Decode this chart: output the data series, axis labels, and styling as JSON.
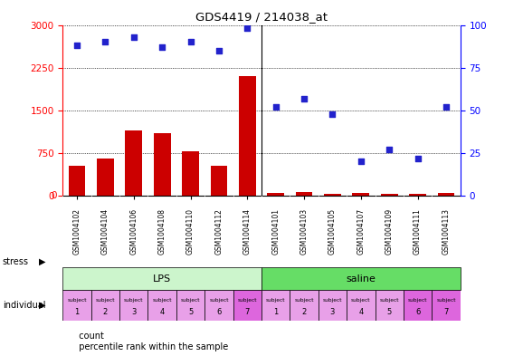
{
  "title": "GDS4419 / 214038_at",
  "samples": [
    "GSM1004102",
    "GSM1004104",
    "GSM1004106",
    "GSM1004108",
    "GSM1004110",
    "GSM1004112",
    "GSM1004114",
    "GSM1004101",
    "GSM1004103",
    "GSM1004105",
    "GSM1004107",
    "GSM1004109",
    "GSM1004111",
    "GSM1004113"
  ],
  "counts": [
    530,
    650,
    1150,
    1100,
    780,
    530,
    2100,
    45,
    60,
    40,
    50,
    35,
    40,
    50
  ],
  "percentiles": [
    88,
    90,
    93,
    87,
    90,
    85,
    98,
    52,
    57,
    48,
    20,
    27,
    22,
    52
  ],
  "individual_subjects": [
    1,
    2,
    3,
    4,
    5,
    6,
    7,
    1,
    2,
    3,
    4,
    5,
    6,
    7
  ],
  "lps_color": "#ccf5cc",
  "saline_color": "#66dd66",
  "individual_colors": [
    "#e8a0e8",
    "#e8a0e8",
    "#e8a0e8",
    "#e8a0e8",
    "#e8a0e8",
    "#e8a0e8",
    "#dd66dd",
    "#e8a0e8",
    "#e8a0e8",
    "#e8a0e8",
    "#e8a0e8",
    "#e8a0e8",
    "#dd66dd",
    "#dd66dd"
  ],
  "bar_color": "#cc0000",
  "dot_color": "#2222cc",
  "sample_bg_color": "#cccccc",
  "ylim_left": [
    0,
    3000
  ],
  "ylim_right": [
    0,
    100
  ],
  "yticks_left": [
    0,
    750,
    1500,
    2250,
    3000
  ],
  "yticks_right": [
    0,
    25,
    50,
    75,
    100
  ],
  "background_color": "#ffffff",
  "grid_color": "#000000",
  "n_lps": 7,
  "n_saline": 7
}
